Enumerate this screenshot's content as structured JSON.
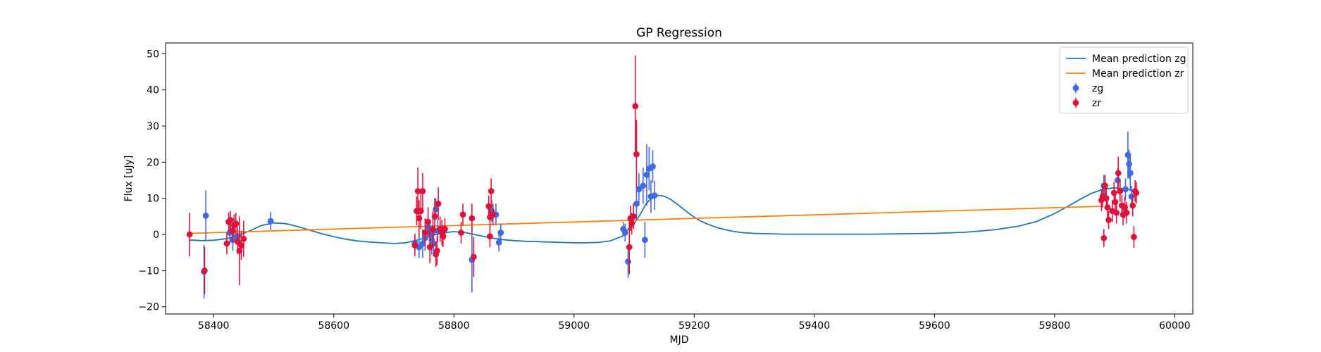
{
  "chart_data": {
    "type": "scatter",
    "title": "GP Regression",
    "xlabel": "MJD",
    "ylabel": "Flux [uJy]",
    "xlim": [
      58320,
      60030
    ],
    "ylim": [
      -22,
      53
    ],
    "xticks": [
      58400,
      58600,
      58800,
      59000,
      59200,
      59400,
      59600,
      59800,
      60000
    ],
    "yticks": [
      -20,
      -10,
      0,
      10,
      20,
      30,
      40,
      50
    ],
    "legend_position": "upper right",
    "series": [
      {
        "name": "Mean prediction zg",
        "kind": "line",
        "color": "#1f77b4",
        "x": [
          58360,
          58380,
          58400,
          58420,
          58440,
          58460,
          58480,
          58500,
          58520,
          58540,
          58560,
          58580,
          58600,
          58620,
          58640,
          58660,
          58680,
          58700,
          58720,
          58740,
          58760,
          58780,
          58800,
          58820,
          58840,
          58860,
          58880,
          58900,
          58920,
          58940,
          58960,
          58980,
          59000,
          59020,
          59040,
          59060,
          59080,
          59090,
          59100,
          59110,
          59120,
          59130,
          59140,
          59150,
          59160,
          59170,
          59180,
          59190,
          59200,
          59210,
          59220,
          59240,
          59260,
          59280,
          59300,
          59350,
          59400,
          59450,
          59500,
          59550,
          59600,
          59650,
          59700,
          59740,
          59770,
          59800,
          59820,
          59840,
          59860,
          59880,
          59900,
          59920,
          59935
        ],
        "y": [
          -1.5,
          -1.7,
          -1.6,
          -1.2,
          -0.3,
          1.0,
          2.5,
          3.2,
          3.0,
          2.2,
          1.2,
          0.2,
          -0.6,
          -1.3,
          -1.8,
          -2.1,
          -2.3,
          -2.5,
          -2.3,
          -1.5,
          -0.5,
          0.4,
          0.8,
          0.5,
          -0.2,
          -0.9,
          -1.4,
          -1.7,
          -1.9,
          -2.0,
          -2.1,
          -2.2,
          -2.3,
          -2.3,
          -2.2,
          -1.8,
          -0.5,
          1.5,
          3.0,
          5.5,
          8.5,
          10.2,
          10.8,
          10.6,
          9.8,
          8.6,
          7.3,
          6.0,
          4.8,
          3.8,
          3.0,
          1.8,
          1.0,
          0.5,
          0.3,
          0.1,
          0.1,
          0.1,
          0.1,
          0.2,
          0.3,
          0.6,
          1.3,
          2.3,
          3.6,
          5.8,
          7.6,
          9.5,
          11.3,
          12.5,
          12.9,
          12.6,
          12.0
        ]
      },
      {
        "name": "Mean prediction zr",
        "kind": "line",
        "color": "#ff7f0e",
        "x": [
          58360,
          59880
        ],
        "y": [
          0.3,
          7.8
        ]
      },
      {
        "name": "zg",
        "kind": "errorbar",
        "color": "#4169e1",
        "points": [
          {
            "x": 58384,
            "y": -10.3,
            "err": 7.5
          },
          {
            "x": 58387,
            "y": 5.2,
            "err": 7.0
          },
          {
            "x": 58427,
            "y": 0.5,
            "err": 3.0
          },
          {
            "x": 58432,
            "y": -1.5,
            "err": 3.0
          },
          {
            "x": 58440,
            "y": -0.5,
            "err": 3.0
          },
          {
            "x": 58495,
            "y": 3.7,
            "err": 2.5
          },
          {
            "x": 58735,
            "y": -2.3,
            "err": 2.5
          },
          {
            "x": 58742,
            "y": -3.5,
            "err": 3.0
          },
          {
            "x": 58748,
            "y": -2.5,
            "err": 4.0
          },
          {
            "x": 58752,
            "y": -1.0,
            "err": 3.5
          },
          {
            "x": 58757,
            "y": 2.0,
            "err": 3.0
          },
          {
            "x": 58760,
            "y": 0.5,
            "err": 3.5
          },
          {
            "x": 58763,
            "y": -1.5,
            "err": 4.0
          },
          {
            "x": 58766,
            "y": -2.5,
            "err": 3.5
          },
          {
            "x": 58770,
            "y": 7.0,
            "err": 3.0
          },
          {
            "x": 58773,
            "y": 1.0,
            "err": 3.0
          },
          {
            "x": 58830,
            "y": -7.0,
            "err": 9.0
          },
          {
            "x": 58863,
            "y": 6.5,
            "err": 3.0
          },
          {
            "x": 58870,
            "y": 5.5,
            "err": 3.0
          },
          {
            "x": 58875,
            "y": -2.2,
            "err": 2.5
          },
          {
            "x": 58878,
            "y": 0.5,
            "err": 2.5
          },
          {
            "x": 59082,
            "y": 1.5,
            "err": 2.0
          },
          {
            "x": 59085,
            "y": 0.5,
            "err": 2.5
          },
          {
            "x": 59090,
            "y": -7.5,
            "err": 4.5
          },
          {
            "x": 59104,
            "y": 8.5,
            "err": 4.5
          },
          {
            "x": 59108,
            "y": 12.5,
            "err": 4.5
          },
          {
            "x": 59115,
            "y": 13.5,
            "err": 5.0
          },
          {
            "x": 59118,
            "y": -1.5,
            "err": 5.0
          },
          {
            "x": 59121,
            "y": 16.5,
            "err": 8.5
          },
          {
            "x": 59125,
            "y": 18.2,
            "err": 6.0
          },
          {
            "x": 59128,
            "y": 10.5,
            "err": 4.5
          },
          {
            "x": 59131,
            "y": 18.8,
            "err": 4.5
          },
          {
            "x": 59134,
            "y": 10.8,
            "err": 4.0
          },
          {
            "x": 59882,
            "y": 13.5,
            "err": 3.0
          },
          {
            "x": 59905,
            "y": 15.0,
            "err": 3.5
          },
          {
            "x": 59918,
            "y": 12.5,
            "err": 3.0
          },
          {
            "x": 59922,
            "y": 22.0,
            "err": 6.5
          },
          {
            "x": 59924,
            "y": 19.5,
            "err": 4.0
          },
          {
            "x": 59926,
            "y": 17.0,
            "err": 5.0
          },
          {
            "x": 59928,
            "y": 10.5,
            "err": 3.0
          }
        ]
      },
      {
        "name": "zr",
        "kind": "errorbar",
        "color": "#dc143c",
        "points": [
          {
            "x": 58360,
            "y": 0.0,
            "err": 6.0
          },
          {
            "x": 58385,
            "y": -10.0,
            "err": 6.5
          },
          {
            "x": 58422,
            "y": -2.5,
            "err": 3.0
          },
          {
            "x": 58425,
            "y": 3.5,
            "err": 2.5
          },
          {
            "x": 58428,
            "y": 4.0,
            "err": 2.5
          },
          {
            "x": 58431,
            "y": 1.0,
            "err": 3.0
          },
          {
            "x": 58434,
            "y": 2.5,
            "err": 3.0
          },
          {
            "x": 58437,
            "y": 3.0,
            "err": 3.0
          },
          {
            "x": 58440,
            "y": -2.0,
            "err": 3.5
          },
          {
            "x": 58443,
            "y": -4.5,
            "err": 9.5
          },
          {
            "x": 58446,
            "y": -3.0,
            "err": 4.0
          },
          {
            "x": 58450,
            "y": -1.2,
            "err": 5.0
          },
          {
            "x": 58735,
            "y": -3.0,
            "err": 3.0
          },
          {
            "x": 58738,
            "y": 6.5,
            "err": 4.0
          },
          {
            "x": 58740,
            "y": 12.0,
            "err": 6.5
          },
          {
            "x": 58742,
            "y": 4.5,
            "err": 5.0
          },
          {
            "x": 58745,
            "y": 6.5,
            "err": 5.0
          },
          {
            "x": 58748,
            "y": 12.0,
            "err": 5.0
          },
          {
            "x": 58752,
            "y": 0.5,
            "err": 4.0
          },
          {
            "x": 58757,
            "y": 3.5,
            "err": 4.0
          },
          {
            "x": 58760,
            "y": -3.5,
            "err": 4.5
          },
          {
            "x": 58765,
            "y": 1.5,
            "err": 5.0
          },
          {
            "x": 58768,
            "y": 5.0,
            "err": 5.0
          },
          {
            "x": 58770,
            "y": -5.5,
            "err": 3.5
          },
          {
            "x": 58772,
            "y": -4.5,
            "err": 4.0
          },
          {
            "x": 58774,
            "y": 8.5,
            "err": 4.5
          },
          {
            "x": 58777,
            "y": 1.5,
            "err": 3.5
          },
          {
            "x": 58780,
            "y": 0.5,
            "err": 3.5
          },
          {
            "x": 58782,
            "y": -0.5,
            "err": 3.0
          },
          {
            "x": 58785,
            "y": 1.5,
            "err": 3.0
          },
          {
            "x": 58812,
            "y": 0.5,
            "err": 3.0
          },
          {
            "x": 58815,
            "y": 5.5,
            "err": 3.0
          },
          {
            "x": 58830,
            "y": 4.5,
            "err": 4.0
          },
          {
            "x": 58833,
            "y": -6.2,
            "err": 5.5
          },
          {
            "x": 58858,
            "y": 7.8,
            "err": 3.0
          },
          {
            "x": 58860,
            "y": 4.8,
            "err": 3.0
          },
          {
            "x": 58862,
            "y": 12.0,
            "err": 3.5
          },
          {
            "x": 58865,
            "y": 5.5,
            "err": 3.0
          },
          {
            "x": 58860,
            "y": -0.5,
            "err": 3.0
          },
          {
            "x": 59092,
            "y": -3.5,
            "err": 7.5
          },
          {
            "x": 59094,
            "y": 4.5,
            "err": 3.5
          },
          {
            "x": 59096,
            "y": 3.0,
            "err": 3.0
          },
          {
            "x": 59099,
            "y": 5.0,
            "err": 3.5
          },
          {
            "x": 59102,
            "y": 35.5,
            "err": 14.0
          },
          {
            "x": 59104,
            "y": 22.2,
            "err": 9.5
          },
          {
            "x": 59878,
            "y": 9.5,
            "err": 3.0
          },
          {
            "x": 59880,
            "y": 10.5,
            "err": 3.0
          },
          {
            "x": 59882,
            "y": -1.0,
            "err": 2.5
          },
          {
            "x": 59884,
            "y": 13.5,
            "err": 3.0
          },
          {
            "x": 59886,
            "y": 10.0,
            "err": 3.0
          },
          {
            "x": 59888,
            "y": 7.5,
            "err": 3.0
          },
          {
            "x": 59890,
            "y": 4.0,
            "err": 2.5
          },
          {
            "x": 59896,
            "y": 6.5,
            "err": 3.0
          },
          {
            "x": 59899,
            "y": 11.5,
            "err": 3.0
          },
          {
            "x": 59901,
            "y": 9.0,
            "err": 3.0
          },
          {
            "x": 59903,
            "y": 6.0,
            "err": 3.0
          },
          {
            "x": 59906,
            "y": 17.0,
            "err": 4.5
          },
          {
            "x": 59909,
            "y": 12.0,
            "err": 3.0
          },
          {
            "x": 59912,
            "y": 8.0,
            "err": 3.0
          },
          {
            "x": 59914,
            "y": 5.5,
            "err": 3.0
          },
          {
            "x": 59917,
            "y": 7.5,
            "err": 3.0
          },
          {
            "x": 59920,
            "y": 6.0,
            "err": 3.0
          },
          {
            "x": 59930,
            "y": 8.0,
            "err": 3.0
          },
          {
            "x": 59932,
            "y": -0.7,
            "err": 3.0
          },
          {
            "x": 59934,
            "y": 12.0,
            "err": 3.0
          },
          {
            "x": 59936,
            "y": 11.5,
            "err": 3.0
          }
        ]
      }
    ]
  }
}
